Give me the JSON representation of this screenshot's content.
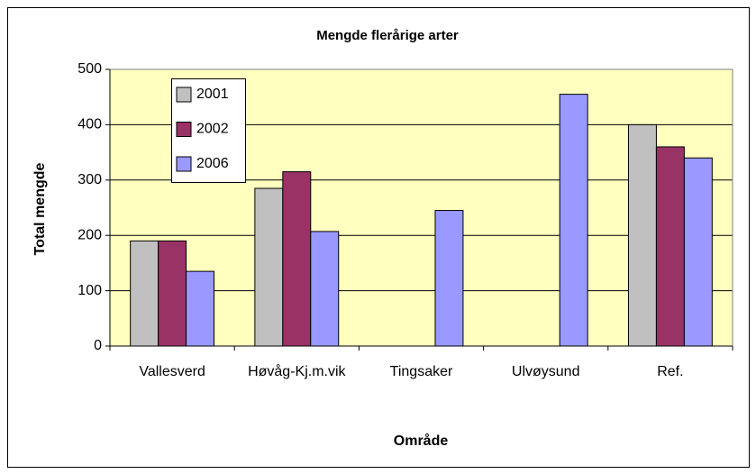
{
  "chart_data": {
    "type": "bar",
    "title": "Mengde flerårige arter",
    "x_label": "Område",
    "y_label": "Total mengde",
    "categories": [
      "Vallesverd",
      "Høvåg-Kj.m.vik",
      "Tingsaker",
      "Ulvøysund",
      "Ref."
    ],
    "series": [
      {
        "name": "2001",
        "color": "#c0c0c0",
        "values": [
          190,
          285,
          null,
          null,
          400
        ]
      },
      {
        "name": "2002",
        "color": "#993366",
        "values": [
          190,
          315,
          null,
          null,
          360
        ]
      },
      {
        "name": "2006",
        "color": "#9999ff",
        "values": [
          135,
          207,
          245,
          455,
          340
        ]
      }
    ],
    "ylim": [
      0,
      500
    ],
    "yticks": [
      0,
      100,
      200,
      300,
      400,
      500
    ],
    "grid": true,
    "legend": "upper left"
  }
}
